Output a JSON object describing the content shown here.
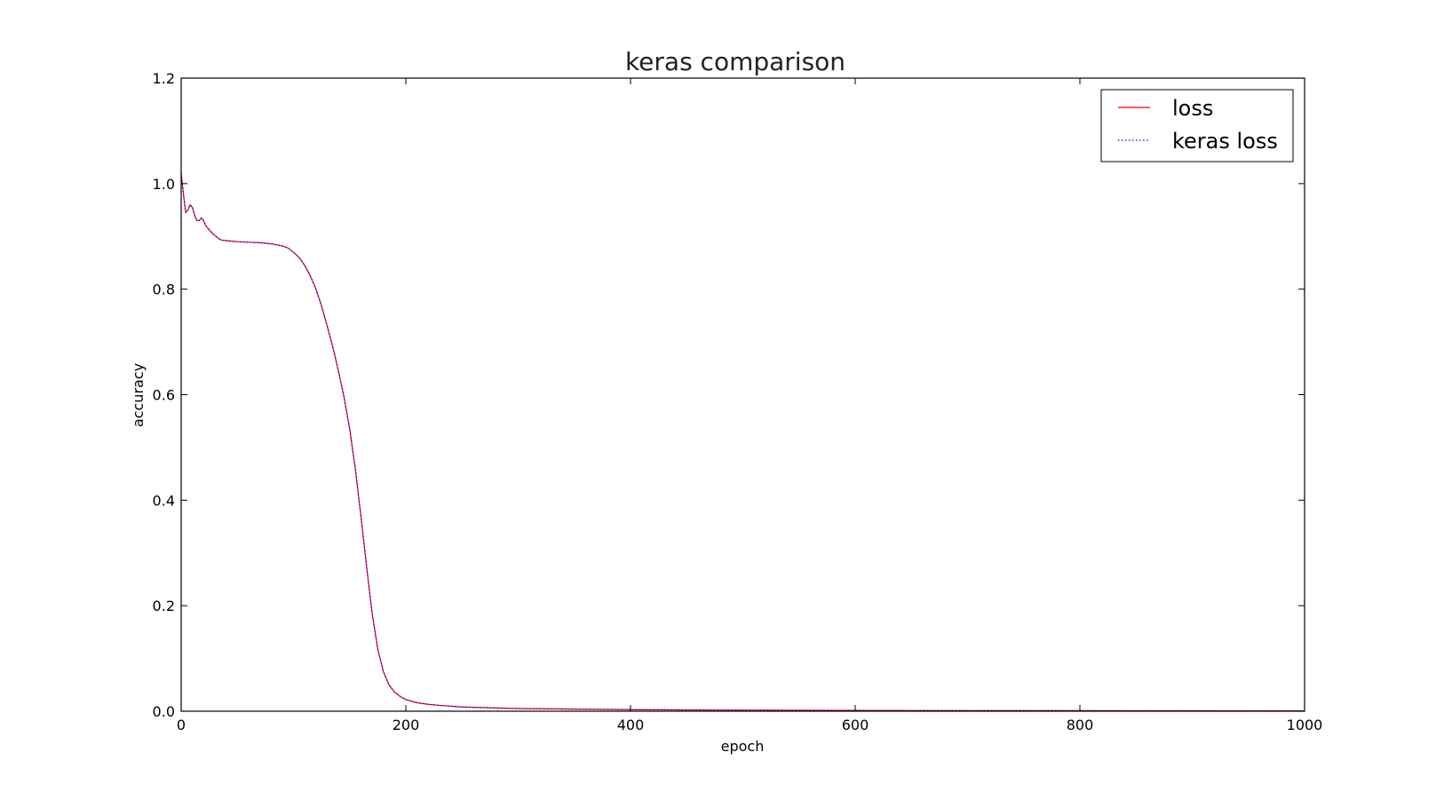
{
  "chart_data": {
    "type": "line",
    "title": "keras comparison",
    "xlabel": "epoch",
    "ylabel": "accuracy",
    "xlim": [
      0,
      1000
    ],
    "ylim": [
      0.0,
      1.2
    ],
    "x_ticks": [
      0,
      200,
      400,
      600,
      800,
      1000
    ],
    "x_tick_labels": [
      "0",
      "200",
      "400",
      "600",
      "800",
      "1000"
    ],
    "y_ticks": [
      0.0,
      0.2,
      0.4,
      0.6,
      0.8,
      1.0,
      1.2
    ],
    "y_tick_labels": [
      "0.0",
      "0.2",
      "0.4",
      "0.6",
      "0.8",
      "1.0",
      "1.2"
    ],
    "grid": false,
    "legend_position": "top-right",
    "series": [
      {
        "name": "loss",
        "color": "#ff0000",
        "style": "solid",
        "x": [
          0,
          2,
          4,
          6,
          8,
          10,
          12,
          14,
          16,
          18,
          20,
          22,
          24,
          26,
          28,
          30,
          32,
          34,
          36,
          40,
          45,
          50,
          60,
          70,
          80,
          90,
          95,
          100,
          105,
          110,
          115,
          120,
          125,
          130,
          135,
          140,
          145,
          150,
          155,
          160,
          165,
          170,
          175,
          180,
          185,
          190,
          195,
          200,
          210,
          220,
          230,
          250,
          300,
          400,
          500,
          600,
          700,
          800,
          900,
          1000
        ],
        "y": [
          1.02,
          0.98,
          0.945,
          0.95,
          0.96,
          0.955,
          0.94,
          0.93,
          0.93,
          0.935,
          0.93,
          0.92,
          0.915,
          0.91,
          0.905,
          0.902,
          0.898,
          0.895,
          0.893,
          0.892,
          0.891,
          0.89,
          0.889,
          0.888,
          0.886,
          0.882,
          0.878,
          0.87,
          0.86,
          0.845,
          0.825,
          0.8,
          0.768,
          0.73,
          0.69,
          0.645,
          0.595,
          0.535,
          0.46,
          0.37,
          0.275,
          0.185,
          0.118,
          0.075,
          0.05,
          0.036,
          0.028,
          0.022,
          0.016,
          0.013,
          0.011,
          0.008,
          0.005,
          0.003,
          0.002,
          0.0015,
          0.0012,
          0.001,
          0.0008,
          0.0007
        ]
      },
      {
        "name": "keras loss",
        "color": "#0000ff",
        "style": "dotted",
        "x": [
          0,
          2,
          4,
          6,
          8,
          10,
          12,
          14,
          16,
          18,
          20,
          22,
          24,
          26,
          28,
          30,
          32,
          34,
          36,
          40,
          45,
          50,
          60,
          70,
          80,
          90,
          95,
          100,
          105,
          110,
          115,
          120,
          125,
          130,
          135,
          140,
          145,
          150,
          155,
          160,
          165,
          170,
          175,
          180,
          185,
          190,
          195,
          200,
          210,
          220,
          230,
          250,
          300,
          400,
          500,
          600,
          700,
          800,
          900,
          1000
        ],
        "y": [
          1.02,
          0.98,
          0.945,
          0.95,
          0.96,
          0.955,
          0.94,
          0.93,
          0.93,
          0.935,
          0.93,
          0.92,
          0.915,
          0.91,
          0.905,
          0.902,
          0.898,
          0.895,
          0.893,
          0.892,
          0.891,
          0.89,
          0.889,
          0.888,
          0.886,
          0.882,
          0.878,
          0.87,
          0.86,
          0.845,
          0.825,
          0.8,
          0.768,
          0.73,
          0.69,
          0.645,
          0.595,
          0.535,
          0.46,
          0.37,
          0.275,
          0.185,
          0.118,
          0.075,
          0.05,
          0.036,
          0.028,
          0.022,
          0.016,
          0.013,
          0.011,
          0.008,
          0.005,
          0.003,
          0.002,
          0.0015,
          0.0012,
          0.001,
          0.0008,
          0.0007
        ]
      }
    ]
  }
}
